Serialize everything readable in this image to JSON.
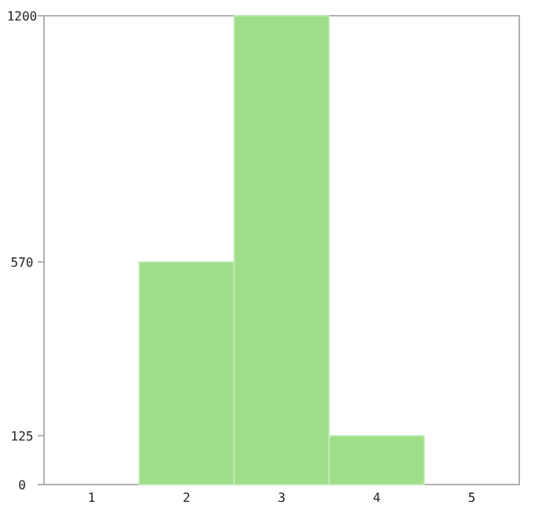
{
  "chart_data": {
    "type": "bar",
    "categories": [
      "1",
      "2",
      "3",
      "4",
      "5"
    ],
    "values": [
      0,
      570,
      1200,
      125,
      0
    ],
    "color": "#9ede88",
    "ylim": [
      0,
      1200
    ],
    "yticks": [
      0,
      125,
      570,
      1200
    ],
    "grid": false
  }
}
